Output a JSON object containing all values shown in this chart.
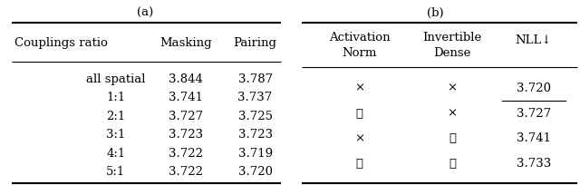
{
  "title_a": "(a)",
  "title_b": "(b)",
  "table_a_headers": [
    "Couplings ratio",
    "Masking",
    "Pairing"
  ],
  "table_a_rows": [
    [
      "all spatial",
      "3.844",
      "3.787"
    ],
    [
      "1:1",
      "3.741",
      "3.737"
    ],
    [
      "2:1",
      "3.727",
      "3.725"
    ],
    [
      "3:1",
      "3.723",
      "3.723"
    ],
    [
      "4:1",
      "3.722",
      "3.719"
    ],
    [
      "5:1",
      "3.722",
      "3.720"
    ]
  ],
  "table_b_headers": [
    "Activation\nNorm",
    "Invertible\nDense",
    "NLL↓"
  ],
  "table_b_rows": [
    [
      "×",
      "×",
      "3.720"
    ],
    [
      "✓",
      "×",
      "3.727"
    ],
    [
      "×",
      "✓",
      "3.741"
    ],
    [
      "✓",
      "✓",
      "3.733"
    ]
  ],
  "table_b_underline_row": 0,
  "table_b_underline_col": 2,
  "bg_color": "#ffffff",
  "font_size": 9.5
}
